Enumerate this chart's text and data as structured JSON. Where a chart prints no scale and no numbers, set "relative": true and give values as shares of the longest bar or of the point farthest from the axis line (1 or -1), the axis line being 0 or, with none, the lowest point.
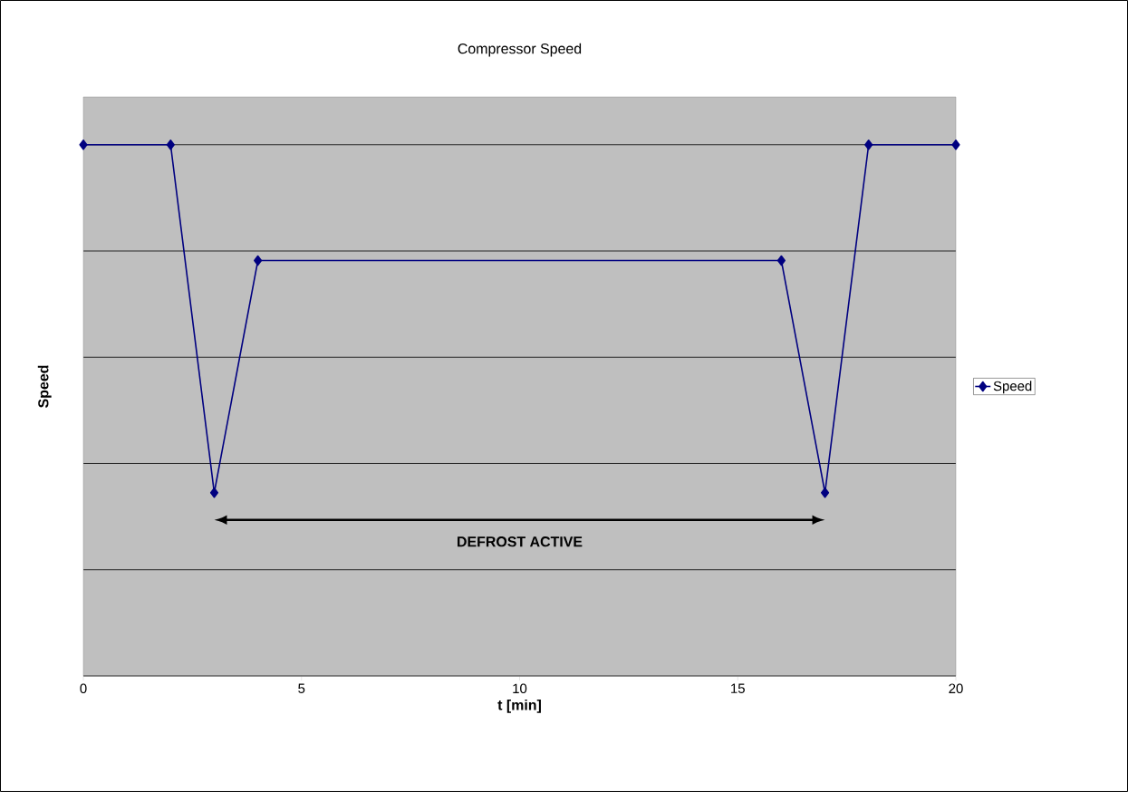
{
  "chart_data": {
    "type": "line",
    "title": "Compressor Speed",
    "xlabel": "t [min]",
    "ylabel": "Speed",
    "relative": true,
    "x": [
      0,
      2,
      3,
      4,
      16,
      17,
      18,
      20
    ],
    "series": [
      {
        "name": "Speed",
        "color": "#000080",
        "values": [
          1,
          1,
          0.345,
          0.782,
          0.782,
          0.345,
          1,
          1
        ]
      }
    ],
    "xlim": [
      0,
      20
    ],
    "xticks": [
      0,
      5,
      10,
      15,
      20
    ],
    "grid": "y",
    "legend": "right",
    "marker": "diamond",
    "line_style": "solid",
    "annotations": [
      "DEFROST ACTIVE"
    ]
  }
}
